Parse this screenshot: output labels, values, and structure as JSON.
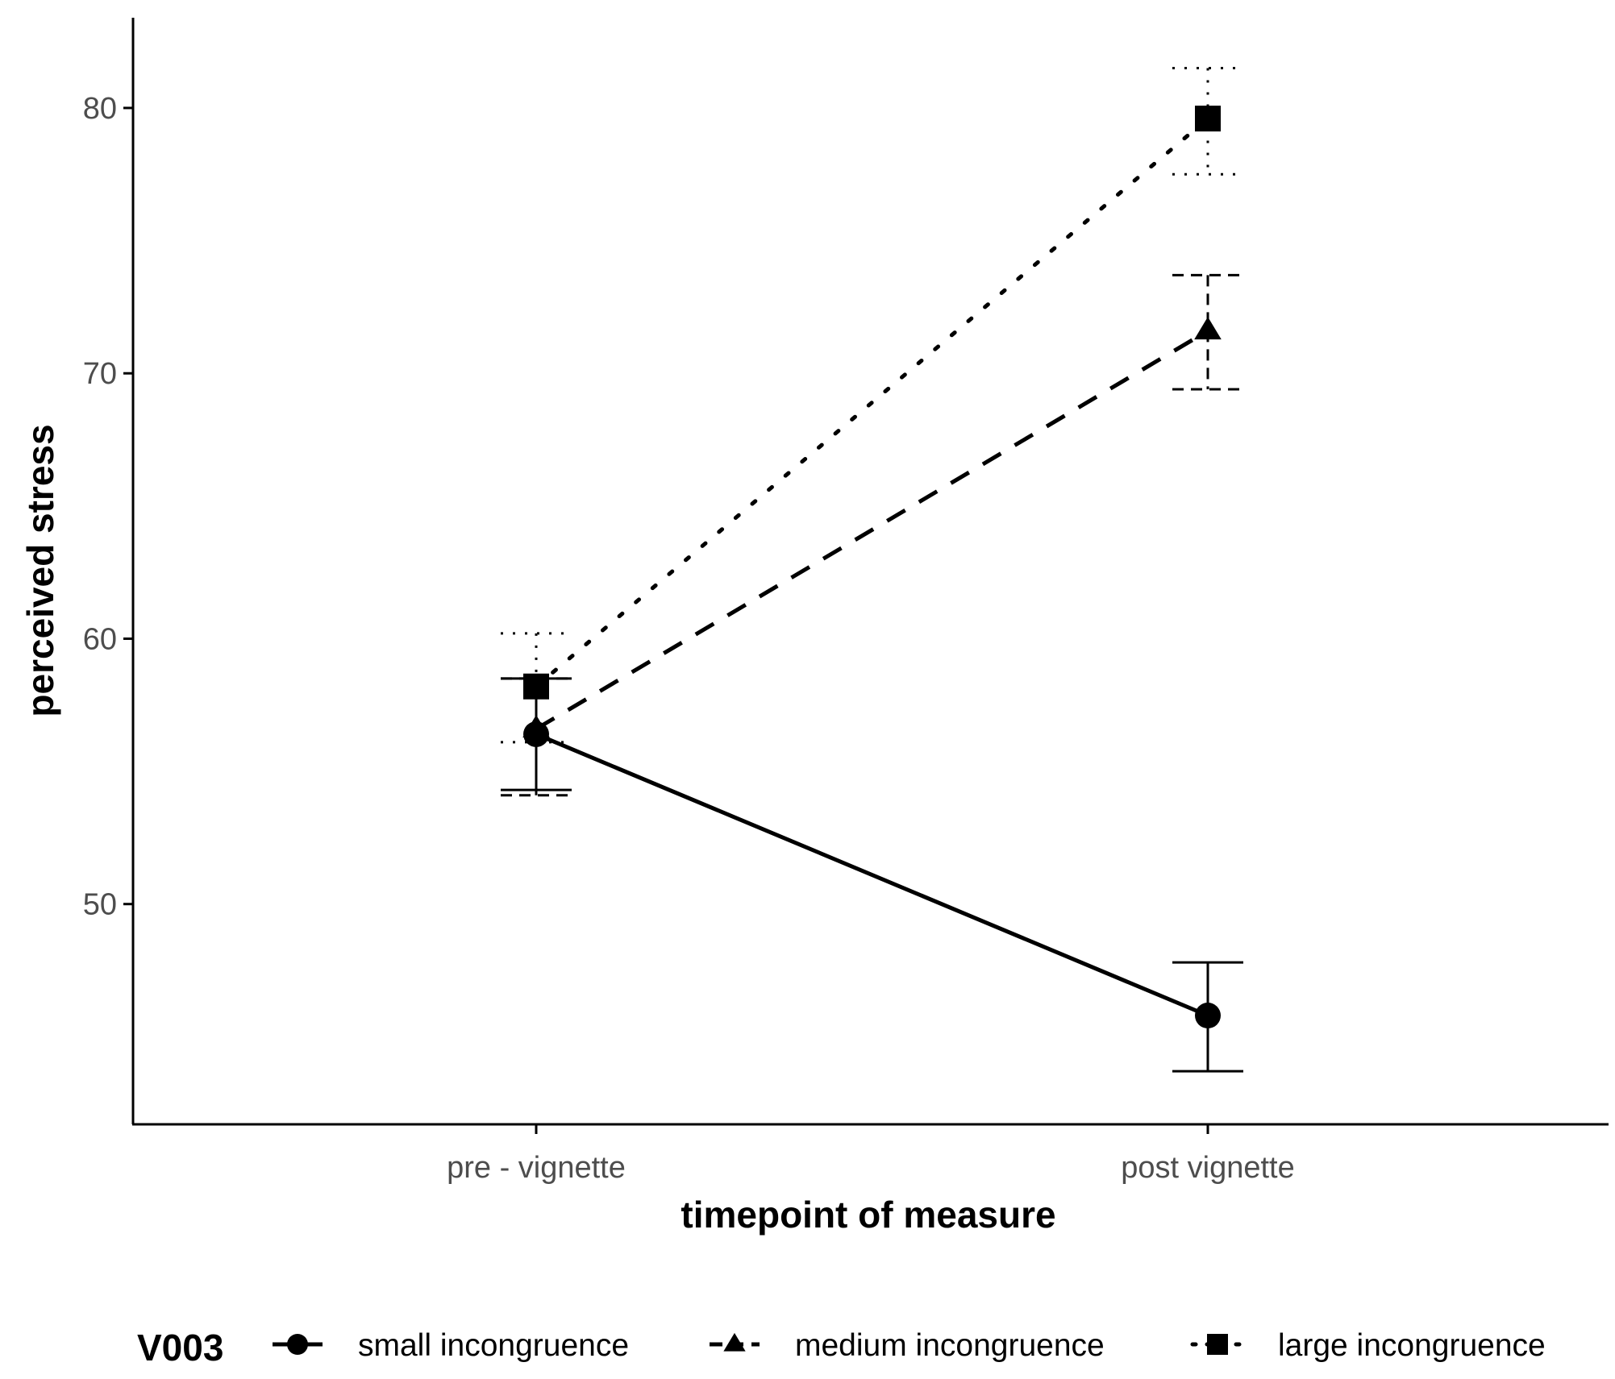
{
  "chart_data": {
    "type": "line",
    "title": "",
    "xlabel": "timepoint of measure",
    "ylabel": "perceived stress",
    "categories": [
      "pre - vignette",
      "post vignette"
    ],
    "ylim": [
      41.7,
      83.4
    ],
    "yticks": [
      50,
      60,
      70,
      80
    ],
    "ytick_labels": [
      "50",
      "60",
      "70",
      "80"
    ],
    "grid": false,
    "legend": {
      "title": "V003",
      "position": "bottom"
    },
    "series": [
      {
        "name": "small incongruence",
        "values": [
          56.4,
          45.8
        ],
        "error_low": [
          54.3,
          43.7
        ],
        "error_high": [
          58.5,
          47.8
        ],
        "marker": "circle",
        "linestyle": "solid"
      },
      {
        "name": "medium incongruence",
        "values": [
          56.6,
          71.6
        ],
        "error_low": [
          54.1,
          69.4
        ],
        "error_high": [
          58.5,
          73.7
        ],
        "marker": "triangle",
        "linestyle": "dashed"
      },
      {
        "name": "large incongruence",
        "values": [
          58.2,
          79.6
        ],
        "error_low": [
          56.1,
          77.5
        ],
        "error_high": [
          60.2,
          81.5
        ],
        "marker": "square",
        "linestyle": "dotted"
      }
    ]
  }
}
